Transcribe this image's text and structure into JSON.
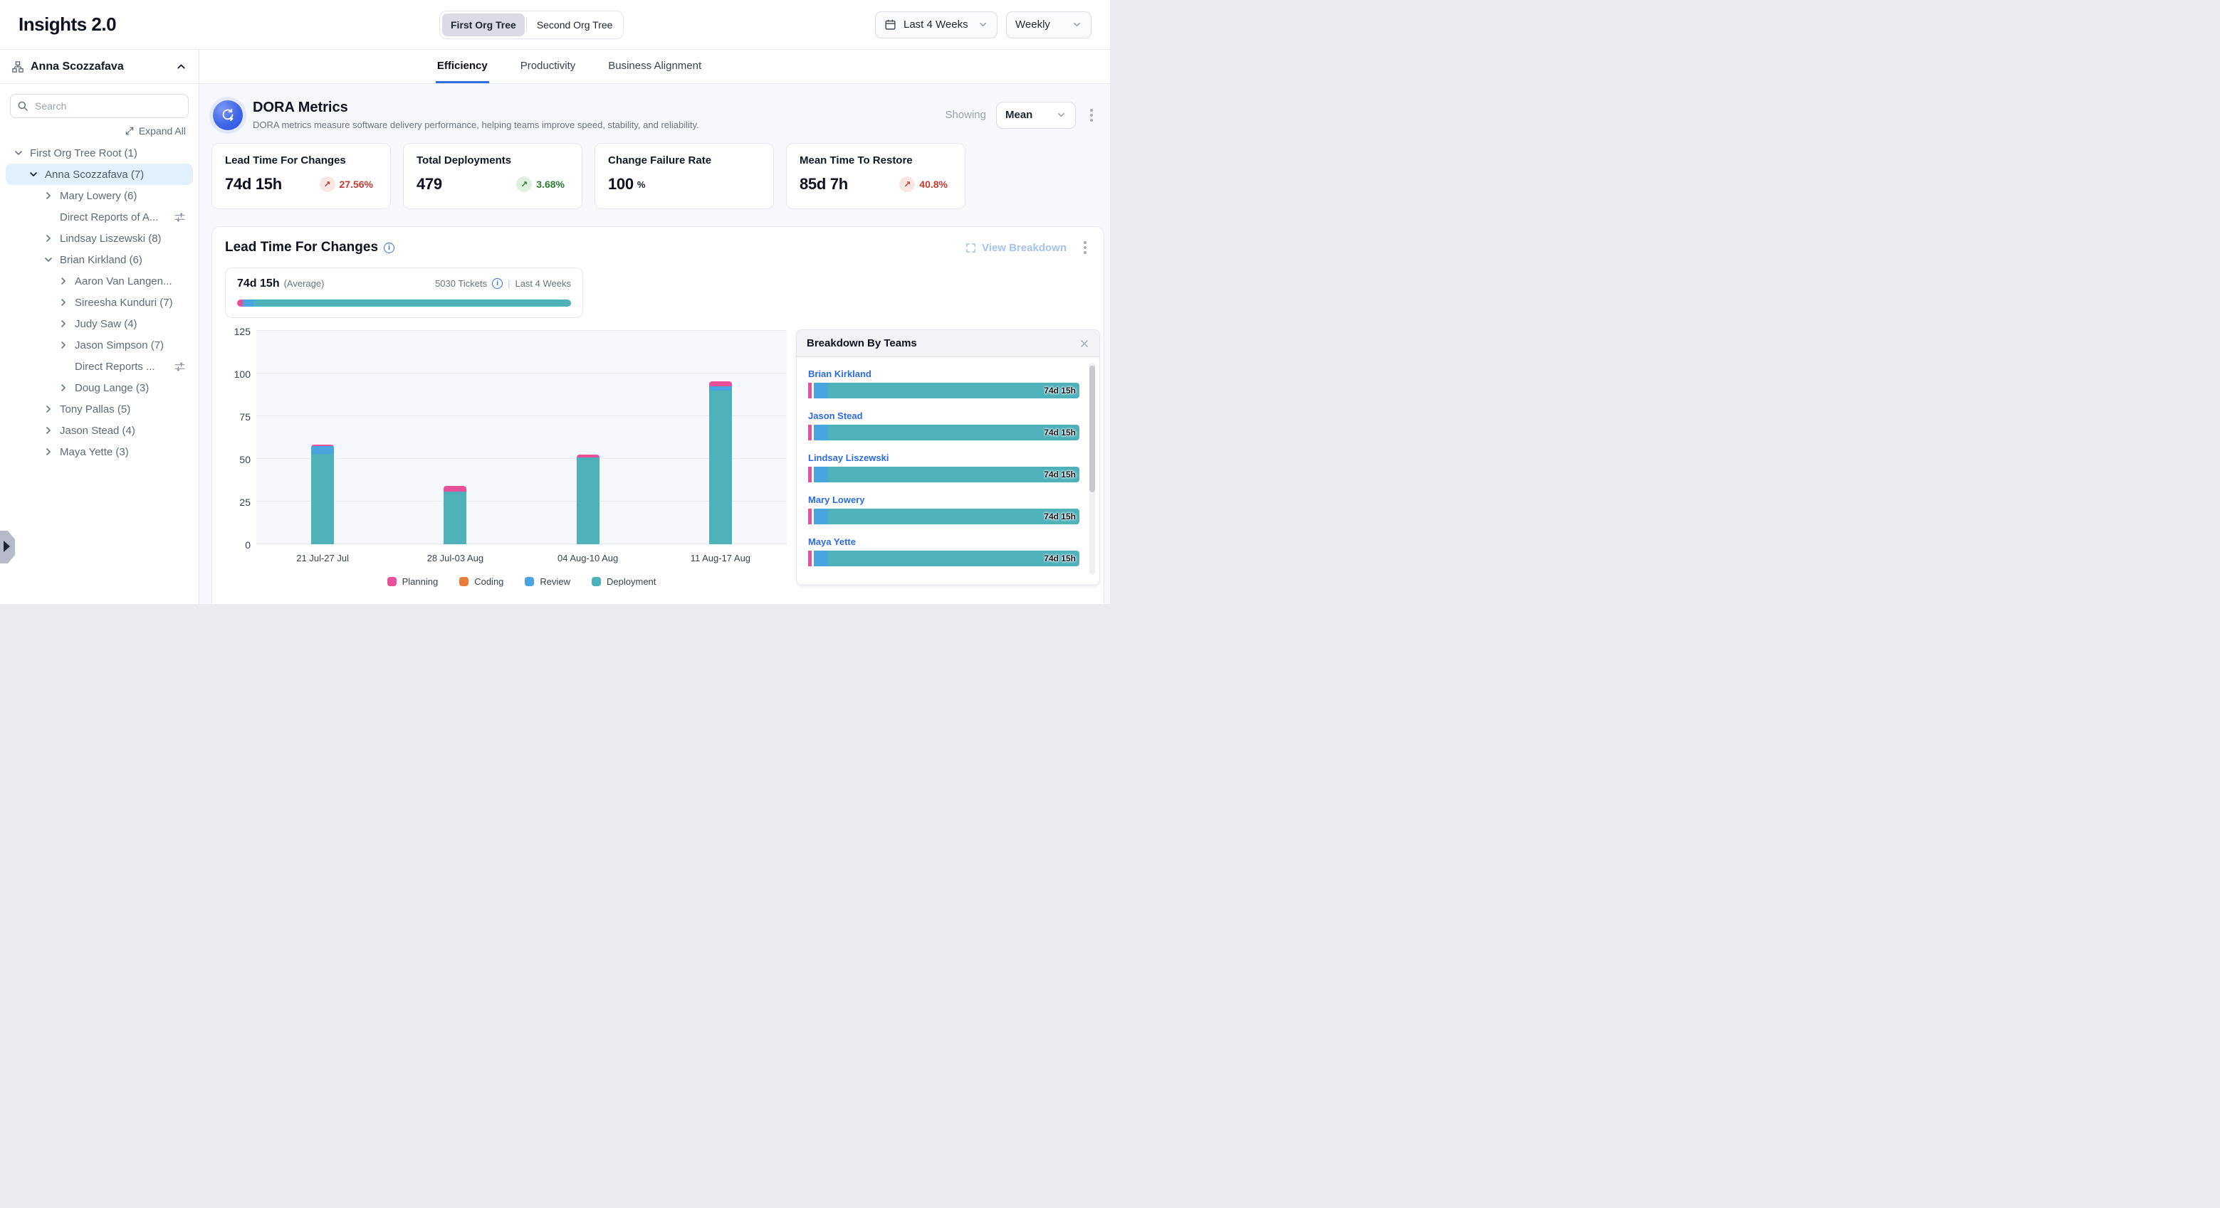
{
  "header": {
    "title": "Insights 2.0",
    "org_tree_toggle": {
      "options": [
        "First Org Tree",
        "Second Org Tree"
      ],
      "selected": "First Org Tree"
    },
    "date_range": "Last 4 Weeks",
    "granularity": "Weekly"
  },
  "sidebar": {
    "user": "Anna Scozzafava",
    "search_placeholder": "Search",
    "expand_all_label": "Expand All",
    "tree": [
      {
        "label": "First Org Tree Root (1)",
        "level": 0,
        "chevron": "down"
      },
      {
        "label": "Anna Scozzafava (7)",
        "level": 1,
        "chevron": "down",
        "selected": true
      },
      {
        "label": "Mary Lowery (6)",
        "level": 2,
        "chevron": "right"
      },
      {
        "label": "Direct Reports of A...",
        "level": 2,
        "chevron": "none",
        "filter": true
      },
      {
        "label": "Lindsay Liszewski (8)",
        "level": 2,
        "chevron": "right"
      },
      {
        "label": "Brian Kirkland (6)",
        "level": 2,
        "chevron": "down"
      },
      {
        "label": "Aaron Van Langen...",
        "level": 3,
        "chevron": "right"
      },
      {
        "label": "Sireesha Kunduri (7)",
        "level": 3,
        "chevron": "right"
      },
      {
        "label": "Judy Saw (4)",
        "level": 3,
        "chevron": "right"
      },
      {
        "label": "Jason Simpson (7)",
        "level": 3,
        "chevron": "right"
      },
      {
        "label": "Direct Reports ...",
        "level": 3,
        "chevron": "none",
        "filter": true
      },
      {
        "label": "Doug Lange (3)",
        "level": 3,
        "chevron": "right"
      },
      {
        "label": "Tony Pallas (5)",
        "level": 2,
        "chevron": "right"
      },
      {
        "label": "Jason Stead (4)",
        "level": 2,
        "chevron": "right"
      },
      {
        "label": "Maya Yette (3)",
        "level": 2,
        "chevron": "right"
      }
    ]
  },
  "tabs": {
    "items": [
      "Efficiency",
      "Productivity",
      "Business Alignment"
    ],
    "active": "Efficiency"
  },
  "dora": {
    "title": "DORA Metrics",
    "description": "DORA metrics measure software delivery performance, helping teams improve speed, stability, and reliability.",
    "showing_label": "Showing",
    "showing_value": "Mean",
    "cards": [
      {
        "title": "Lead Time For Changes",
        "value": "74d 15h",
        "delta": "27.56%",
        "trend": "up",
        "trend_color": "red"
      },
      {
        "title": "Total Deployments",
        "value": "479",
        "delta": "3.68%",
        "trend": "up",
        "trend_color": "green"
      },
      {
        "title": "Change Failure Rate",
        "value": "100",
        "unit": "%"
      },
      {
        "title": "Mean Time To Restore",
        "value": "85d 7h",
        "delta": "40.8%",
        "trend": "up",
        "trend_color": "red"
      }
    ]
  },
  "lead_time": {
    "title": "Lead Time For Changes",
    "view_breakdown_label": "View Breakdown",
    "average_value": "74d 15h",
    "average_label": "(Average)",
    "tickets_label": "5030 Tickets",
    "range_label": "Last 4 Weeks",
    "avg_bar_pct": {
      "planning": 1.6,
      "review": 3.2,
      "deployment": 95.2
    }
  },
  "chart_data": {
    "type": "bar",
    "stacked": true,
    "title": "Lead Time For Changes",
    "categories": [
      "21 Jul-27 Jul",
      "28 Jul-03 Aug",
      "04 Aug-10 Aug",
      "11 Aug-17 Aug"
    ],
    "series": [
      {
        "name": "Planning",
        "color": "#E8509A",
        "values": [
          1,
          3,
          1.5,
          3
        ]
      },
      {
        "name": "Coding",
        "color": "#ED7A38",
        "values": [
          0,
          0,
          0,
          0
        ]
      },
      {
        "name": "Review",
        "color": "#4AA4E0",
        "values": [
          4.5,
          0,
          0,
          2.5
        ]
      },
      {
        "name": "Deployment",
        "color": "#4FB1BA",
        "values": [
          53,
          31,
          51,
          90
        ]
      }
    ],
    "stack_order_bottom_to_top": [
      "Deployment",
      "Review",
      "Coding",
      "Planning"
    ],
    "ylabel": "",
    "xlabel": "",
    "ylim": [
      0,
      125
    ],
    "yticks": [
      0,
      25,
      50,
      75,
      100,
      125
    ],
    "grid": true,
    "legend_position": "bottom"
  },
  "breakdown": {
    "title": "Breakdown By Teams",
    "rows": [
      {
        "name": "Brian Kirkland",
        "value": "74d 15h"
      },
      {
        "name": "Jason Stead",
        "value": "74d 15h"
      },
      {
        "name": "Lindsay Liszewski",
        "value": "74d 15h"
      },
      {
        "name": "Mary Lowery",
        "value": "74d 15h"
      },
      {
        "name": "Maya Yette",
        "value": "74d 15h"
      }
    ]
  },
  "colors": {
    "planning": "#E8509A",
    "coding": "#ED7A38",
    "review": "#4AA4E0",
    "deployment": "#4FB1BA",
    "active_tab": "#2F6FE4",
    "link_blue": "#2B6BE8",
    "status_red": "#C6392F",
    "status_red_bg": "#F9E7E4",
    "status_green": "#2E7D32",
    "status_green_bg": "#DFF0DE"
  }
}
